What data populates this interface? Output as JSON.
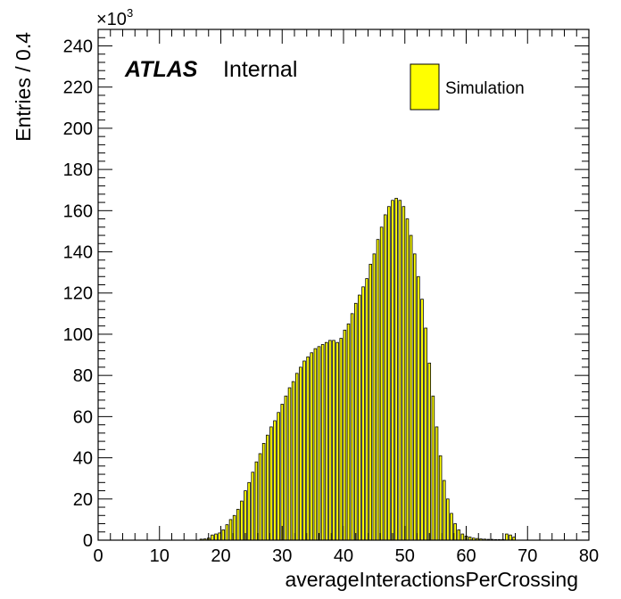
{
  "chart_data": {
    "type": "bar",
    "xlabel": "averageInteractionsPerCrossing",
    "ylabel": "Entries / 0.4",
    "y_multiplier": "×10",
    "y_multiplier_exp": "3",
    "xlim": [
      0,
      80
    ],
    "ylim": [
      0,
      248
    ],
    "x_ticks": [
      "0",
      "10",
      "20",
      "30",
      "40",
      "50",
      "60",
      "70",
      "80"
    ],
    "y_ticks": [
      "0",
      "20",
      "40",
      "60",
      "80",
      "100",
      "120",
      "140",
      "160",
      "180",
      "200",
      "220",
      "240"
    ],
    "bin_width": 0.4,
    "grid": false,
    "legend_placement": "top-right",
    "fill_color": "#ffff00",
    "stroke_color": "#000000",
    "label_atlas": "ATLAS",
    "label_internal": "Internal",
    "series": [
      {
        "name": "Simulation",
        "x": [
          16.6,
          17.2,
          17.8,
          18.4,
          19.0,
          19.6,
          20.2,
          20.8,
          21.4,
          22.0,
          22.6,
          23.2,
          23.8,
          24.4,
          25.0,
          25.6,
          26.2,
          26.8,
          27.4,
          28.0,
          28.6,
          29.2,
          29.8,
          30.4,
          31.0,
          31.6,
          32.2,
          32.8,
          33.4,
          34.0,
          34.6,
          35.2,
          35.8,
          36.4,
          37.0,
          37.6,
          38.2,
          38.8,
          39.4,
          40.0,
          40.6,
          41.2,
          41.8,
          42.4,
          43.0,
          43.6,
          44.2,
          44.8,
          45.4,
          46.0,
          46.6,
          47.2,
          47.8,
          48.4,
          49.0,
          49.6,
          50.2,
          50.8,
          51.4,
          52.0,
          52.6,
          53.2,
          53.8,
          54.4,
          55.0,
          55.6,
          56.2,
          56.8,
          57.4,
          58.0,
          58.6,
          59.2,
          59.8,
          60.4,
          61.0,
          61.6,
          62.2,
          62.8,
          63.4,
          64.0,
          64.6,
          65.2,
          65.8,
          66.4,
          67.0,
          67.6
        ],
        "values": [
          0.5,
          0.6,
          1.0,
          2.5,
          3.0,
          3.5,
          5.0,
          7.5,
          10.0,
          12.0,
          15.0,
          19.0,
          24.0,
          28.0,
          33.0,
          38.0,
          42.0,
          47.0,
          51.0,
          55.0,
          58.0,
          62.0,
          66.0,
          70.0,
          74.0,
          77.0,
          81.0,
          84.0,
          87.0,
          89.0,
          91.0,
          93.0,
          94.0,
          95.0,
          96.0,
          97.0,
          97.0,
          96.0,
          98.0,
          102.0,
          105.0,
          110.0,
          115.0,
          119.0,
          123.0,
          127.0,
          134.0,
          139.0,
          146.0,
          152.0,
          158.0,
          162.0,
          165.0,
          166.0,
          165.0,
          162.0,
          156.0,
          148.0,
          139.0,
          128.0,
          117.0,
          103.0,
          86.0,
          70.0,
          55.0,
          41.0,
          29.0,
          20.0,
          13.0,
          8.0,
          5.0,
          3.0,
          2.0,
          1.5,
          1.0,
          0.8,
          0.6,
          0.5,
          0.4,
          0.4,
          0.3,
          0.3,
          0.3,
          3.0,
          2.5,
          1.5
        ]
      }
    ]
  }
}
